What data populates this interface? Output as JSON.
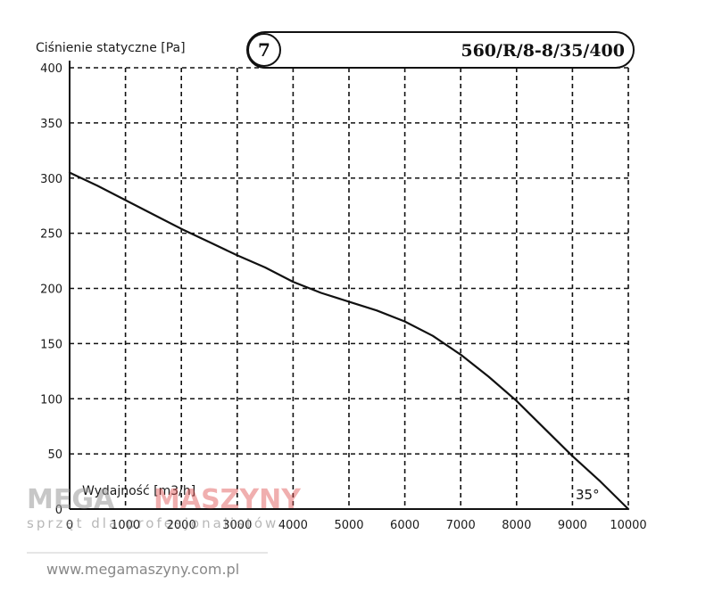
{
  "chart_data": {
    "type": "line",
    "ylabel": "Ciśnienie statyczne [Pa]",
    "xlabel": "Wydajność [m3/h]",
    "curve_number": "7",
    "model": "560/R/8-8/35/400",
    "annotation": "35°",
    "xlim": [
      0,
      10000
    ],
    "ylim": [
      0,
      400
    ],
    "x_ticks": [
      "0",
      "1000",
      "2000",
      "3000",
      "4000",
      "5000",
      "6000",
      "7000",
      "8000",
      "9000",
      "10000"
    ],
    "y_ticks": [
      "0",
      "50",
      "100",
      "150",
      "200",
      "250",
      "300",
      "350",
      "400"
    ],
    "grid": true,
    "series": [
      {
        "x": [
          0,
          500,
          1000,
          1500,
          2000,
          2500,
          3000,
          3500,
          4000,
          4500,
          5000,
          5500,
          6000,
          6500,
          7000,
          7500,
          8000,
          8500,
          9000,
          9500,
          10000
        ],
        "y": [
          305,
          293,
          280,
          267,
          254,
          242,
          230,
          219,
          206,
          196,
          188,
          180,
          170,
          157,
          140,
          120,
          98,
          73,
          48,
          25,
          0
        ]
      }
    ]
  },
  "watermark": {
    "brand_left": "MEGA",
    "brand_right": "MASZYNY",
    "slogan": "sprzęt dla profesjonalistów",
    "url": "www.megamaszyny.com.pl"
  }
}
